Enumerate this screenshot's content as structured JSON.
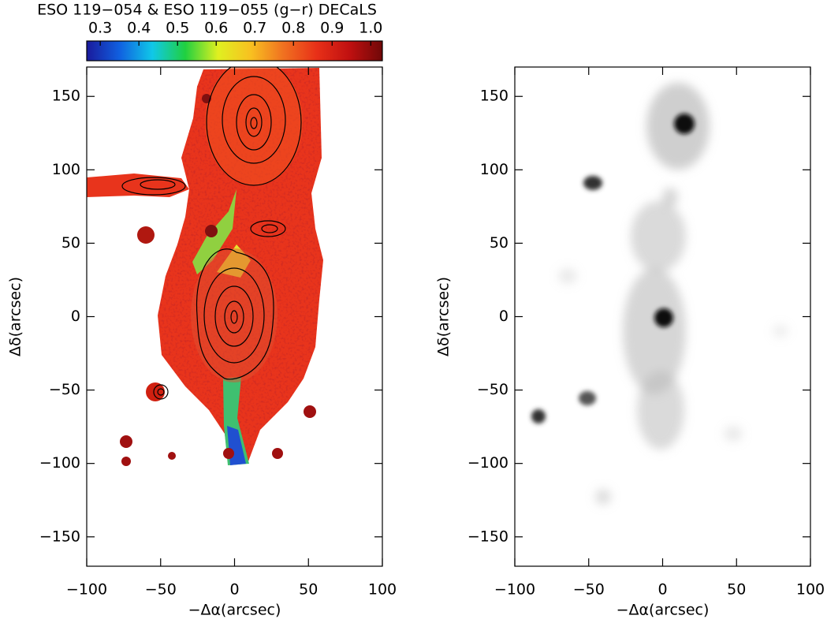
{
  "chart_data": [
    {
      "type": "image",
      "title": "ESO 119−054 & ESO 119−055 (g−r) DECaLS",
      "colorbar": {
        "lim": [
          0.265,
          1.03
        ],
        "ticks": [
          0.3,
          0.4,
          0.5,
          0.6,
          0.7,
          0.8,
          0.9,
          {
            "value": 1,
            "label": "1.0"
          }
        ],
        "colors": [
          "#1a1a9c",
          "#1060e0",
          "#10c8e8",
          "#20d040",
          "#e0f020",
          "#f8c020",
          "#f07020",
          "#e83018",
          "#c01010",
          "#700808"
        ]
      },
      "xlabel": "−Δα(arcsec)",
      "ylabel": "Δδ(arcsec)",
      "xlim": [
        -100,
        100
      ],
      "ylim": [
        -170,
        170
      ],
      "xticks": [
        {
          "value": -100,
          "label": "−100"
        },
        {
          "value": -50,
          "label": "−50"
        },
        0,
        50,
        100
      ],
      "yticks": [
        {
          "value": -150,
          "label": "−150"
        },
        {
          "value": -100,
          "label": "−100"
        },
        {
          "value": -50,
          "label": "−50"
        },
        0,
        50,
        100,
        150
      ]
    },
    {
      "type": "image",
      "xlabel": "−Δα(arcsec)",
      "ylabel": "Δδ(arcsec)",
      "xlim": [
        -100,
        100
      ],
      "ylim": [
        -170,
        170
      ],
      "xticks": [
        {
          "value": -100,
          "label": "−100"
        },
        {
          "value": -50,
          "label": "−50"
        },
        0,
        50,
        100
      ],
      "yticks": [
        {
          "value": -150,
          "label": "−150"
        },
        {
          "value": -100,
          "label": "−100"
        },
        {
          "value": -50,
          "label": "−50"
        },
        0,
        50,
        100,
        150
      ]
    }
  ]
}
